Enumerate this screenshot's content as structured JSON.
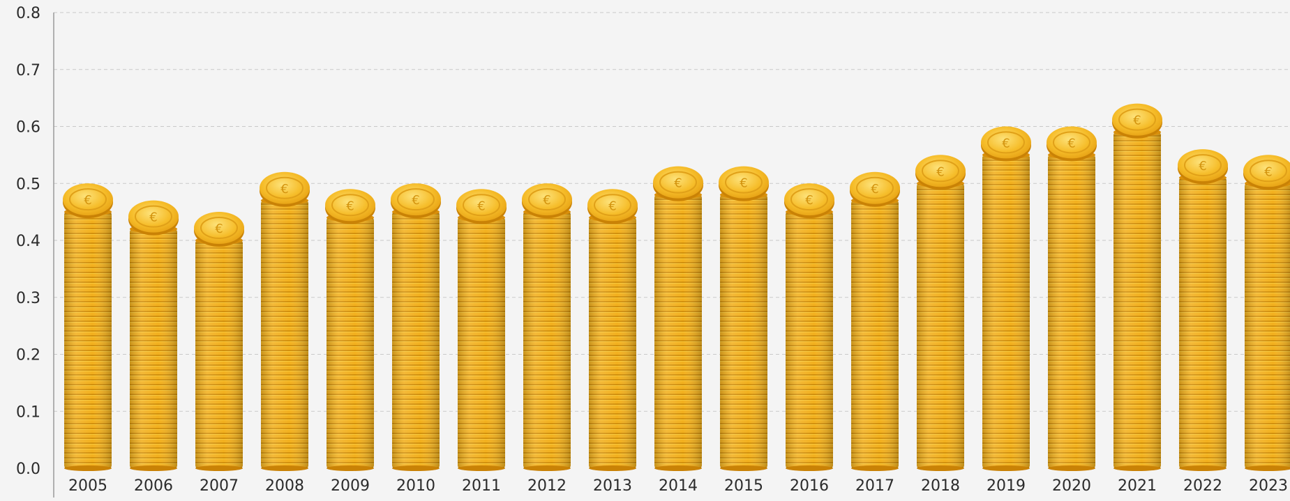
{
  "chart_data": {
    "type": "bar",
    "title": "",
    "xlabel": "",
    "ylabel": "",
    "categories": [
      "2005",
      "2006",
      "2007",
      "2008",
      "2009",
      "2010",
      "2011",
      "2012",
      "2013",
      "2014",
      "2015",
      "2016",
      "2017",
      "2018",
      "2019",
      "2020",
      "2021",
      "2022",
      "2023"
    ],
    "values": [
      0.45,
      0.42,
      0.4,
      0.47,
      0.44,
      0.45,
      0.44,
      0.45,
      0.44,
      0.48,
      0.48,
      0.45,
      0.47,
      0.5,
      0.55,
      0.55,
      0.59,
      0.51,
      0.5
    ],
    "ylim": [
      0,
      0.8
    ],
    "yticks": [
      "0.0",
      "0.1",
      "0.2",
      "0.3",
      "0.4",
      "0.5",
      "0.6",
      "0.7",
      "0.8"
    ],
    "grid": true,
    "bar_style": "stacked-euro-coins",
    "colors": {
      "coin_body": "#f2b01e",
      "coin_light": "#fcd54a",
      "coin_dark": "#d98f0a",
      "coin_edge": "#c98206",
      "grid": "#c9c9c9",
      "axis": "#9a9a9a",
      "background": "#f4f4f4"
    },
    "coin_symbol": "€"
  }
}
